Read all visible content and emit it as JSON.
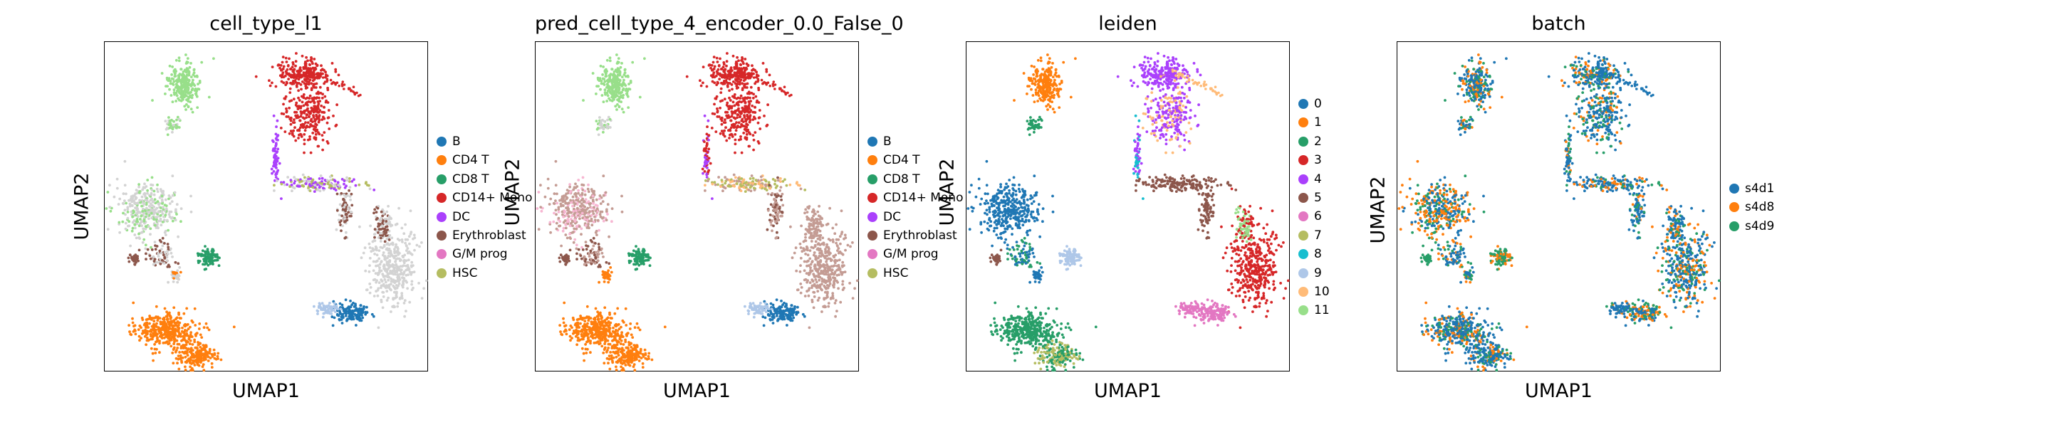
{
  "colors": {
    "B": "#1f77b4",
    "CD4 T": "#ff7f0e",
    "CD8 T": "#279e68",
    "CD14+ Mono": "#d62728",
    "DC": "#aa40fc",
    "Erythroblast": "#8c564b",
    "G/M prog": "#e377c2",
    "HSC": "#b5bd61",
    "other": "#d3d3d3",
    "CD16+ Mono": "#c49c94",
    "light_green": "#98df8a",
    "light_blue": "#aec7e8",
    "light_pink": "#f7b6d2",
    "light_orange": "#ffbb78",
    "pale_olive": "#dbdb8d",
    "cyan": "#17becf",
    "leiden": [
      "#1f77b4",
      "#ff7f0e",
      "#279e68",
      "#d62728",
      "#aa40fc",
      "#8c564b",
      "#e377c2",
      "#b5bd61",
      "#17becf",
      "#aec7e8",
      "#ffbb78",
      "#98df8a"
    ],
    "batch": [
      "#1f77b4",
      "#ff7f0e",
      "#279e68"
    ]
  },
  "chart_data": [
    {
      "type": "scatter",
      "title": "cell_type_l1",
      "xlabel": "UMAP1",
      "ylabel": "UMAP2",
      "legend_position": "right",
      "legend": [
        "B",
        "CD4 T",
        "CD8 T",
        "CD14+ Mono",
        "DC",
        "Erythroblast",
        "G/M prog",
        "HSC"
      ],
      "legend_colors": [
        "#1f77b4",
        "#ff7f0e",
        "#279e68",
        "#d62728",
        "#aa40fc",
        "#8c564b",
        "#e377c2",
        "#b5bd61"
      ]
    },
    {
      "type": "scatter",
      "title": "pred_cell_type_4_encoder_0.0_False_0",
      "xlabel": "UMAP1",
      "ylabel": "UMAP2",
      "legend_position": "right",
      "legend": [
        "B",
        "CD4 T",
        "CD8 T",
        "CD14+ Mono",
        "DC",
        "Erythroblast",
        "G/M prog",
        "HSC"
      ],
      "legend_colors": [
        "#1f77b4",
        "#ff7f0e",
        "#279e68",
        "#d62728",
        "#aa40fc",
        "#8c564b",
        "#e377c2",
        "#b5bd61"
      ]
    },
    {
      "type": "scatter",
      "title": "leiden",
      "xlabel": "UMAP1",
      "ylabel": "UMAP2",
      "legend_position": "right",
      "legend": [
        "0",
        "1",
        "2",
        "3",
        "4",
        "5",
        "6",
        "7",
        "8",
        "9",
        "10",
        "11"
      ],
      "legend_colors": [
        "#1f77b4",
        "#ff7f0e",
        "#279e68",
        "#d62728",
        "#aa40fc",
        "#8c564b",
        "#e377c2",
        "#b5bd61",
        "#17becf",
        "#aec7e8",
        "#ffbb78",
        "#98df8a"
      ]
    },
    {
      "type": "scatter",
      "title": "batch",
      "xlabel": "UMAP1",
      "ylabel": "UMAP2",
      "legend_position": "right",
      "legend": [
        "s4d1",
        "s4d8",
        "s4d9"
      ],
      "legend_colors": [
        "#1f77b4",
        "#ff7f0e",
        "#279e68"
      ]
    }
  ]
}
